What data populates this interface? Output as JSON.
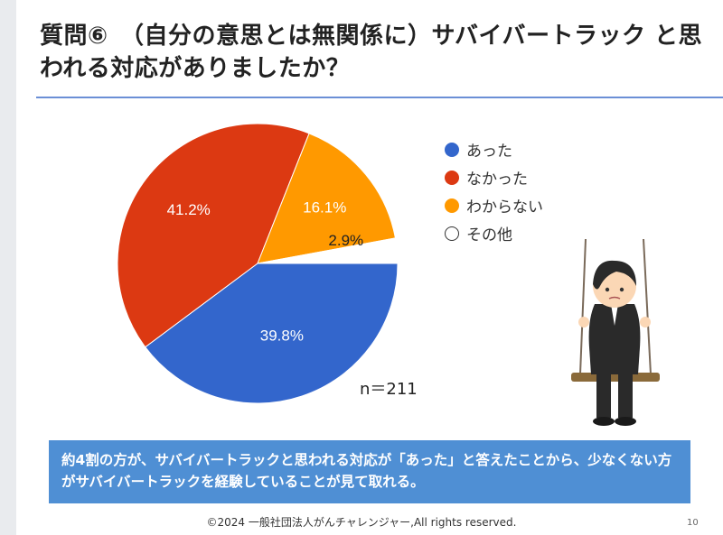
{
  "title": "質問⑥　（自分の意思とは無関係に）サバイバートラック と思われる対応がありましたか？",
  "chart_data": {
    "type": "pie",
    "series": [
      {
        "label": "あった",
        "value": 39.8,
        "display": "39.8%",
        "color": "#3366cc"
      },
      {
        "label": "なかった",
        "value": 41.2,
        "display": "41.2%",
        "color": "#dc3912"
      },
      {
        "label": "わからない",
        "value": 16.1,
        "display": "16.1%",
        "color": "#ff9900"
      },
      {
        "label": "その他",
        "value": 2.9,
        "display": "2.9%",
        "color": "#ffffff"
      }
    ],
    "note": "n＝211"
  },
  "summary": "約4割の方が、サバイバートラックと思われる対応が「あった」と答えたことから、少なくない方がサバイバートラックを経験していることが見て取れる。",
  "footer": "©2024 一般社団法人がんチャレンジャー,All rights reserved.",
  "page_number": "10"
}
